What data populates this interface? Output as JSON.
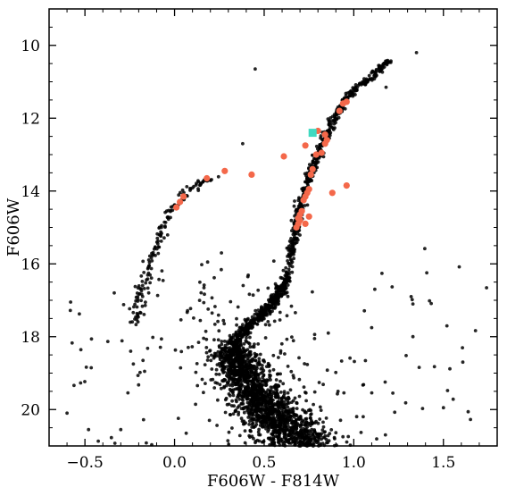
{
  "chart_data": {
    "type": "scatter",
    "title": "",
    "xlabel": "F606W - F814W",
    "ylabel": "F606W",
    "xlim": [
      -0.7,
      1.8
    ],
    "ylim": [
      21.0,
      9.0
    ],
    "y_inverted": true,
    "grid": false,
    "legend": "none",
    "x_ticks": [
      -0.5,
      0.0,
      0.5,
      1.0,
      1.5
    ],
    "x_tick_labels": [
      "−0.5",
      "0.0",
      "0.5",
      "1.0",
      "1.5"
    ],
    "y_ticks": [
      10,
      12,
      14,
      16,
      18,
      20
    ],
    "y_tick_labels": [
      "10",
      "12",
      "14",
      "16",
      "18",
      "20"
    ],
    "colors": {
      "stars": "#000000",
      "highlighted": "#f4684a",
      "special": "#3fd9c1"
    },
    "sequences": [
      {
        "name": "red giant branch",
        "points": [
          [
            0.62,
            16.5
          ],
          [
            0.64,
            16.0
          ],
          [
            0.66,
            15.5
          ],
          [
            0.68,
            15.0
          ],
          [
            0.7,
            14.5
          ],
          [
            0.73,
            14.0
          ],
          [
            0.76,
            13.5
          ],
          [
            0.8,
            13.0
          ],
          [
            0.84,
            12.5
          ],
          [
            0.89,
            12.0
          ],
          [
            0.95,
            11.5
          ],
          [
            1.03,
            11.1
          ],
          [
            1.1,
            10.9
          ],
          [
            1.15,
            10.6
          ],
          [
            1.2,
            10.4
          ]
        ],
        "n": 560,
        "spread": 0.012
      },
      {
        "name": "subgiant branch",
        "points": [
          [
            0.32,
            18.2
          ],
          [
            0.4,
            17.8
          ],
          [
            0.5,
            17.3
          ],
          [
            0.56,
            17.0
          ],
          [
            0.6,
            16.7
          ],
          [
            0.62,
            16.5
          ]
        ],
        "n": 420,
        "spread": 0.02
      },
      {
        "name": "main sequence",
        "points": [
          [
            0.32,
            18.2
          ],
          [
            0.34,
            18.6
          ],
          [
            0.38,
            19.0
          ],
          [
            0.44,
            19.5
          ],
          [
            0.52,
            20.0
          ],
          [
            0.62,
            20.5
          ],
          [
            0.72,
            21.0
          ]
        ],
        "n": 1700,
        "spread": 0.05
      },
      {
        "name": "horizontal branch",
        "points": [
          [
            -0.22,
            17.7
          ],
          [
            -0.2,
            17.0
          ],
          [
            -0.17,
            16.5
          ],
          [
            -0.13,
            16.0
          ],
          [
            -0.1,
            15.5
          ],
          [
            -0.07,
            15.0
          ],
          [
            -0.03,
            14.6
          ],
          [
            0.03,
            14.3
          ],
          [
            0.08,
            14.0
          ],
          [
            0.15,
            13.75
          ],
          [
            0.22,
            13.6
          ]
        ],
        "n": 150,
        "spread": 0.018
      }
    ],
    "field_stars": {
      "n": 300,
      "x_range": [
        -0.6,
        1.75
      ],
      "y_range": [
        15.5,
        21.0
      ]
    },
    "highlighted_points": [
      [
        0.28,
        13.45
      ],
      [
        0.18,
        13.65
      ],
      [
        0.43,
        13.55
      ],
      [
        0.61,
        13.05
      ],
      [
        0.05,
        14.15
      ],
      [
        0.03,
        14.3
      ],
      [
        0.01,
        14.45
      ],
      [
        0.73,
        12.75
      ],
      [
        0.79,
        13.0
      ],
      [
        0.82,
        12.95
      ],
      [
        0.84,
        12.7
      ],
      [
        0.85,
        12.6
      ],
      [
        0.84,
        12.45
      ],
      [
        0.8,
        12.35
      ],
      [
        0.92,
        11.8
      ],
      [
        0.94,
        11.6
      ],
      [
        0.96,
        11.55
      ],
      [
        0.77,
        13.4
      ],
      [
        0.76,
        13.55
      ],
      [
        0.75,
        13.95
      ],
      [
        0.74,
        14.05
      ],
      [
        0.73,
        14.15
      ],
      [
        0.72,
        14.25
      ],
      [
        0.71,
        14.55
      ],
      [
        0.7,
        14.65
      ],
      [
        0.69,
        14.75
      ],
      [
        0.7,
        14.8
      ],
      [
        0.69,
        14.9
      ],
      [
        0.68,
        15.0
      ],
      [
        0.75,
        14.7
      ],
      [
        0.73,
        14.9
      ],
      [
        0.88,
        14.05
      ],
      [
        0.96,
        13.85
      ]
    ],
    "special_point": [
      0.77,
      12.4
    ]
  }
}
